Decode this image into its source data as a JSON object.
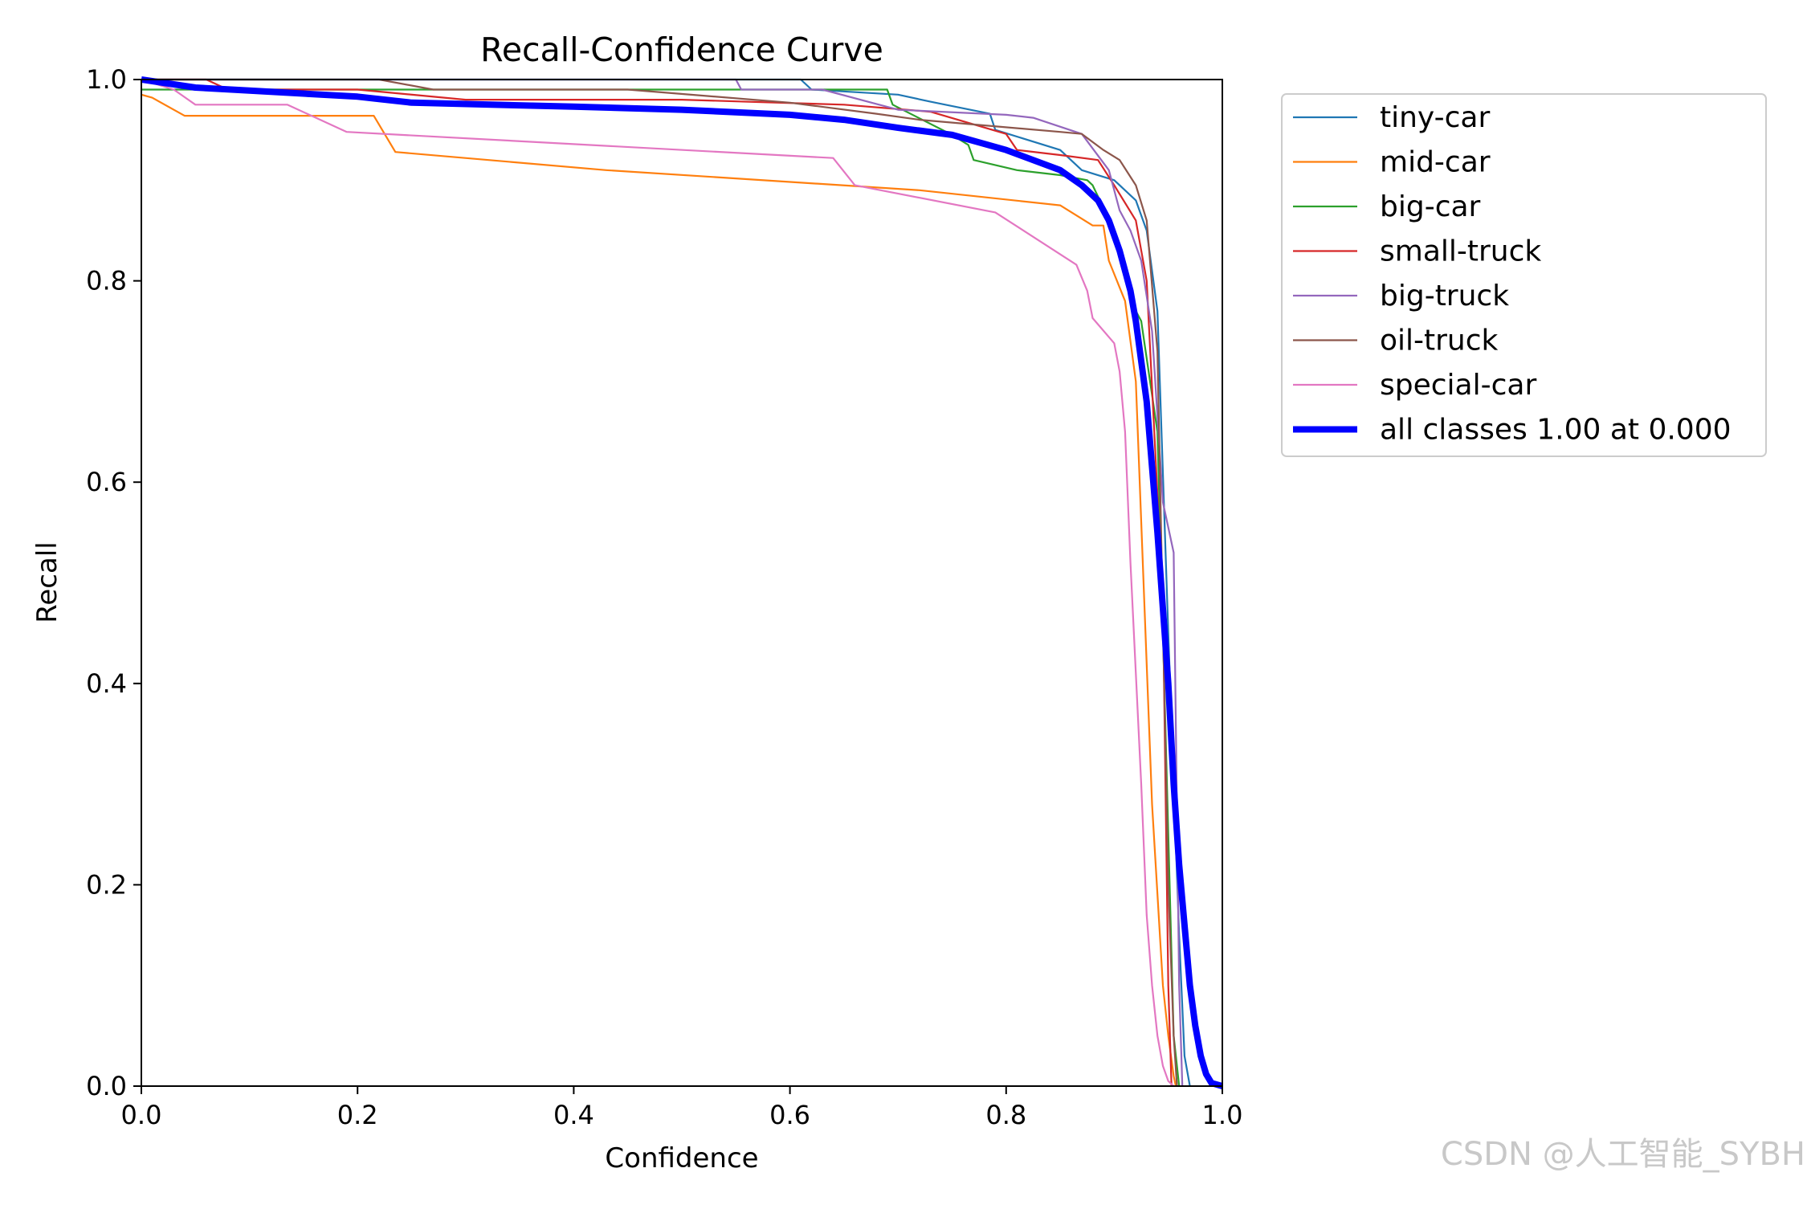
{
  "watermark": "CSDN @人工智能_SYBH",
  "chart_data": {
    "type": "line",
    "title": "Recall-Confidence Curve",
    "xlabel": "Confidence",
    "ylabel": "Recall",
    "xlim": [
      0,
      1
    ],
    "ylim": [
      0,
      1
    ],
    "xticks": [
      "0.0",
      "0.2",
      "0.4",
      "0.6",
      "0.8",
      "1.0"
    ],
    "yticks": [
      "0.0",
      "0.2",
      "0.4",
      "0.6",
      "0.8",
      "1.0"
    ],
    "grid": false,
    "legend_position": "outside-right-top",
    "series": [
      {
        "name": "tiny-car",
        "color": "#1f77b4",
        "x": [
          0.0,
          0.61,
          0.62,
          0.7,
          0.73,
          0.785,
          0.79,
          0.85,
          0.87,
          0.9,
          0.92,
          0.93,
          0.94,
          0.95,
          0.96,
          0.965,
          0.97
        ],
        "y": [
          1.0,
          1.0,
          0.99,
          0.985,
          0.978,
          0.966,
          0.95,
          0.93,
          0.91,
          0.9,
          0.88,
          0.85,
          0.77,
          0.45,
          0.15,
          0.03,
          0.0
        ]
      },
      {
        "name": "mid-car",
        "color": "#ff7f0e",
        "x": [
          0.0,
          0.01,
          0.04,
          0.215,
          0.235,
          0.43,
          0.72,
          0.85,
          0.88,
          0.89,
          0.895,
          0.91,
          0.92,
          0.935,
          0.945,
          0.95,
          0.955,
          0.957
        ],
        "y": [
          0.985,
          0.982,
          0.964,
          0.964,
          0.928,
          0.91,
          0.89,
          0.875,
          0.855,
          0.855,
          0.82,
          0.78,
          0.7,
          0.28,
          0.1,
          0.05,
          0.01,
          0.0
        ]
      },
      {
        "name": "big-car",
        "color": "#2ca02c",
        "x": [
          0.0,
          0.69,
          0.695,
          0.75,
          0.765,
          0.77,
          0.81,
          0.85,
          0.875,
          0.88,
          0.9,
          0.92,
          0.925,
          0.94,
          0.945,
          0.955,
          0.96
        ],
        "y": [
          0.99,
          0.99,
          0.975,
          0.945,
          0.935,
          0.92,
          0.91,
          0.905,
          0.9,
          0.895,
          0.85,
          0.77,
          0.76,
          0.65,
          0.45,
          0.05,
          0.0
        ]
      },
      {
        "name": "small-truck",
        "color": "#d62728",
        "x": [
          0.0,
          0.06,
          0.08,
          0.2,
          0.3,
          0.5,
          0.65,
          0.73,
          0.8,
          0.81,
          0.85,
          0.885,
          0.9,
          0.92,
          0.93,
          0.945,
          0.95,
          0.953
        ],
        "y": [
          1.0,
          1.0,
          0.99,
          0.99,
          0.98,
          0.98,
          0.975,
          0.968,
          0.946,
          0.93,
          0.925,
          0.92,
          0.895,
          0.86,
          0.8,
          0.48,
          0.1,
          0.0
        ]
      },
      {
        "name": "big-truck",
        "color": "#9467bd",
        "x": [
          0.0,
          0.55,
          0.555,
          0.63,
          0.7,
          0.8,
          0.825,
          0.87,
          0.895,
          0.905,
          0.915,
          0.925,
          0.935,
          0.945,
          0.955,
          0.96,
          0.963
        ],
        "y": [
          1.0,
          1.0,
          0.99,
          0.99,
          0.97,
          0.965,
          0.962,
          0.946,
          0.91,
          0.87,
          0.85,
          0.82,
          0.75,
          0.58,
          0.53,
          0.1,
          0.0
        ]
      },
      {
        "name": "oil-truck",
        "color": "#8c564b",
        "x": [
          0.0,
          0.22,
          0.27,
          0.45,
          0.6,
          0.68,
          0.72,
          0.85,
          0.87,
          0.89,
          0.905,
          0.92,
          0.93,
          0.94,
          0.95,
          0.955,
          0.958
        ],
        "y": [
          1.0,
          1.0,
          0.99,
          0.99,
          0.977,
          0.966,
          0.96,
          0.948,
          0.946,
          0.93,
          0.92,
          0.895,
          0.86,
          0.73,
          0.2,
          0.05,
          0.0
        ]
      },
      {
        "name": "special-car",
        "color": "#e377c2",
        "x": [
          0.0,
          0.03,
          0.05,
          0.135,
          0.19,
          0.64,
          0.66,
          0.79,
          0.865,
          0.875,
          0.88,
          0.9,
          0.905,
          0.91,
          0.915,
          0.92,
          0.925,
          0.93,
          0.935,
          0.94,
          0.945,
          0.95,
          0.955
        ],
        "y": [
          1.0,
          0.99,
          0.975,
          0.975,
          0.948,
          0.922,
          0.895,
          0.868,
          0.816,
          0.79,
          0.763,
          0.738,
          0.71,
          0.65,
          0.52,
          0.41,
          0.3,
          0.17,
          0.1,
          0.05,
          0.02,
          0.005,
          0.0
        ]
      },
      {
        "name": "all classes 1.00 at 0.000",
        "color": "#0000ff",
        "bold": true,
        "x": [
          0.0,
          0.05,
          0.1,
          0.2,
          0.25,
          0.4,
          0.5,
          0.6,
          0.65,
          0.7,
          0.75,
          0.8,
          0.85,
          0.87,
          0.885,
          0.895,
          0.905,
          0.915,
          0.92,
          0.93,
          0.94,
          0.95,
          0.955,
          0.96,
          0.965,
          0.97,
          0.975,
          0.98,
          0.985,
          0.99,
          1.0
        ],
        "y": [
          1.0,
          0.992,
          0.989,
          0.983,
          0.977,
          0.973,
          0.97,
          0.965,
          0.96,
          0.952,
          0.945,
          0.93,
          0.91,
          0.895,
          0.88,
          0.86,
          0.83,
          0.79,
          0.76,
          0.68,
          0.55,
          0.4,
          0.3,
          0.22,
          0.16,
          0.1,
          0.06,
          0.03,
          0.012,
          0.003,
          0.0
        ]
      }
    ]
  }
}
